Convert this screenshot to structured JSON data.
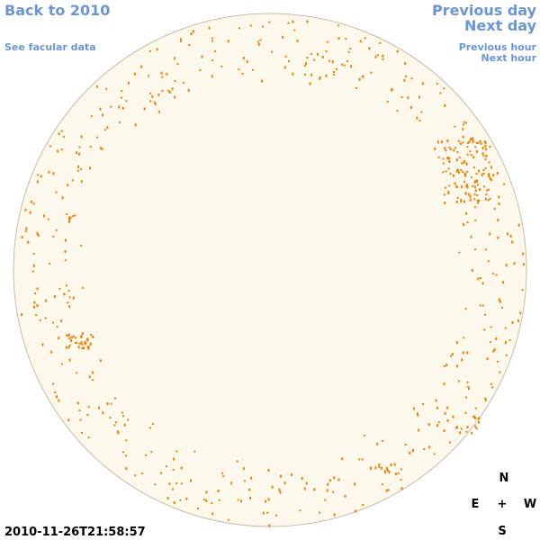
{
  "links": {
    "back": "Back to 2010",
    "facular": "See facular data",
    "previous_day": "Previous day",
    "next_day": "Next day",
    "previous_hour": "Previous hour",
    "next_hour": "Next hour"
  },
  "timestamp": "2010-11-26T21:58:57",
  "compass": {
    "north": "N",
    "east": "E",
    "center": "+",
    "west": "W",
    "south": "S"
  }
}
